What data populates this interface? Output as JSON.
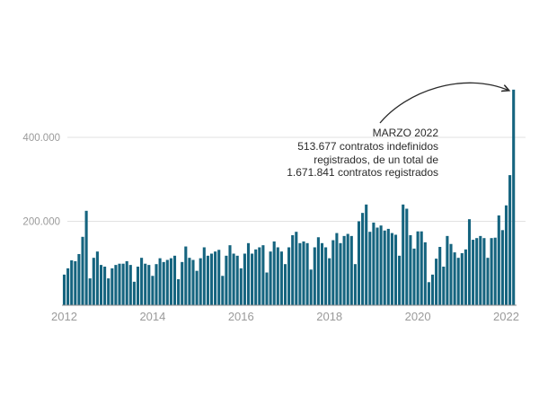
{
  "chart_data": {
    "type": "bar",
    "title": "",
    "xlabel": "",
    "ylabel": "",
    "unit": "contratos indefinidos registrados por mes",
    "start": "2012-01",
    "frequency": "monthly",
    "values": [
      73000,
      88000,
      107000,
      105000,
      122000,
      163000,
      225000,
      64000,
      113000,
      128000,
      96000,
      92000,
      64000,
      88000,
      96000,
      99000,
      99000,
      105000,
      96000,
      56000,
      92000,
      113000,
      99000,
      96000,
      70000,
      98000,
      112000,
      103000,
      108000,
      112000,
      118000,
      62000,
      103000,
      140000,
      113000,
      108000,
      82000,
      112000,
      138000,
      118000,
      123000,
      128000,
      132000,
      70000,
      118000,
      143000,
      123000,
      118000,
      88000,
      123000,
      148000,
      123000,
      133000,
      138000,
      143000,
      78000,
      128000,
      152000,
      138000,
      128000,
      98000,
      138000,
      167000,
      175000,
      148000,
      152000,
      148000,
      85000,
      138000,
      162000,
      148000,
      138000,
      112000,
      155000,
      172000,
      148000,
      165000,
      170000,
      165000,
      98000,
      200000,
      220000,
      240000,
      175000,
      197000,
      185000,
      190000,
      178000,
      182000,
      172000,
      168000,
      118000,
      240000,
      230000,
      167000,
      135000,
      176000,
      176000,
      150000,
      55000,
      73000,
      111000,
      139000,
      92000,
      165000,
      146000,
      126000,
      113000,
      124000,
      133000,
      205000,
      156000,
      160000,
      165000,
      160000,
      113000,
      160000,
      161000,
      214000,
      179000,
      238000,
      310000,
      513677
    ],
    "highlight": {
      "month": "2022-03",
      "value": 513677
    },
    "x_ticks": [
      {
        "year": 2012,
        "label": "2012"
      },
      {
        "year": 2014,
        "label": "2014"
      },
      {
        "year": 2016,
        "label": "2016"
      },
      {
        "year": 2018,
        "label": "2018"
      },
      {
        "year": 2020,
        "label": "2020"
      },
      {
        "year": 2022,
        "label": "2022"
      }
    ],
    "y_ticks": [
      {
        "value": 200000,
        "label": "200.000"
      },
      {
        "value": 400000,
        "label": "400.000"
      }
    ],
    "ylim": [
      0,
      520000
    ],
    "grid": "horizontal",
    "legend": "none",
    "colors": {
      "bar": "#15647f",
      "grid": "#e2e2e2",
      "axis": "#8c8c8c",
      "tick_label": "#9a9a9a",
      "annotation_text": "#2a2a2a",
      "arrow": "#2a2a2a"
    }
  },
  "annotation": {
    "lines": [
      "MARZO 2022",
      "513.677 contratos indefinidos",
      "registrados, de un total de",
      "1.671.841 contratos registrados"
    ]
  }
}
